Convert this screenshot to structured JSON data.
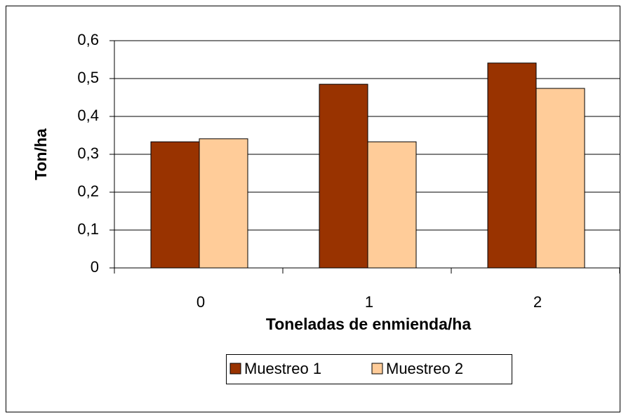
{
  "chart_data": {
    "type": "bar",
    "x_label": "Toneladas de enmienda/ha",
    "y_label": "Ton/ha",
    "categories": [
      "0",
      "1",
      "2"
    ],
    "series": [
      {
        "name": "Muestreo 1",
        "color": "#993300",
        "values": [
          0.333,
          0.485,
          0.541
        ]
      },
      {
        "name": "Muestreo 2",
        "color": "#ffcc99",
        "values": [
          0.341,
          0.333,
          0.474
        ]
      }
    ],
    "ylim": [
      0,
      0.6
    ],
    "yticks": [
      0,
      {
        "value": 0.1,
        "label": "0,1"
      },
      {
        "value": 0.2,
        "label": "0,2"
      },
      {
        "value": 0.3,
        "label": "0,3"
      },
      {
        "value": 0.4,
        "label": "0,4"
      },
      {
        "value": 0.5,
        "label": "0,5"
      },
      {
        "value": 0.6,
        "label": "0,6"
      }
    ],
    "grid": true,
    "legend": "bottom"
  }
}
